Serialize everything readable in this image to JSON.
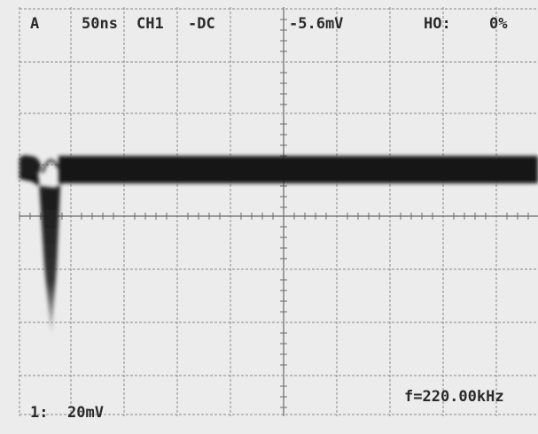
{
  "header": {
    "trigger": "A",
    "timebase": "50ns",
    "channel": "CH1",
    "coupling": "-DC",
    "level": "-5.6mV",
    "holdoff_label": "HO:",
    "holdoff": "0%"
  },
  "footer": {
    "channel_label": "1:",
    "volts_per_div": "20mV",
    "frequency": "f=220.00kHz"
  }
}
